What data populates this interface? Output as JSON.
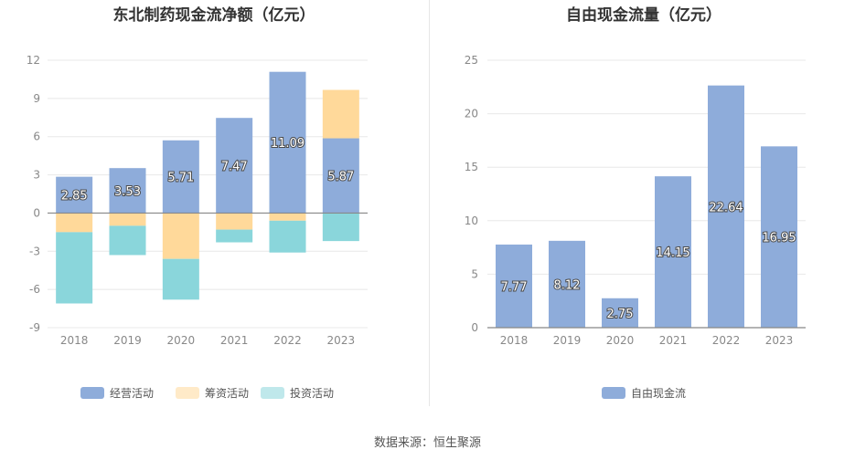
{
  "source": "数据来源：恒生聚源",
  "colors": {
    "operating": "#8EACDA",
    "financing": "#FFD99A",
    "investing": "#8AD6DB",
    "fcf": "#8EACDA",
    "grid": "#e8e8e8",
    "axis": "#888888",
    "tick_text": "#888888",
    "title_text": "#333333",
    "label_text": "#ffffff"
  },
  "chart_data": [
    {
      "type": "bar",
      "stacked": true,
      "title": "东北制药现金流净额（亿元）",
      "categories": [
        "2018",
        "2019",
        "2020",
        "2021",
        "2022",
        "2023"
      ],
      "ylim": [
        -9,
        12
      ],
      "yticks": [
        "12",
        "9",
        "6",
        "3",
        "0",
        "-3",
        "-6",
        "-9"
      ],
      "grid": true,
      "legend_position": "bottom",
      "series": [
        {
          "name": "经营活动",
          "values": [
            2.85,
            3.53,
            5.71,
            7.47,
            11.09,
            5.87
          ],
          "labels": [
            "2.85",
            "3.53",
            "5.71",
            "7.47",
            "11.09",
            "5.87"
          ]
        },
        {
          "name": "筹资活动",
          "values": [
            -1.5,
            -1.0,
            -3.6,
            -1.3,
            -0.6,
            3.8
          ]
        },
        {
          "name": "投资活动",
          "values": [
            -5.6,
            -2.3,
            -3.2,
            -1.0,
            -2.5,
            -2.2
          ]
        }
      ]
    },
    {
      "type": "bar",
      "title": "自由现金流量（亿元）",
      "categories": [
        "2018",
        "2019",
        "2020",
        "2021",
        "2022",
        "2023"
      ],
      "ylim": [
        0,
        25
      ],
      "yticks": [
        "25",
        "20",
        "15",
        "10",
        "5",
        "0"
      ],
      "grid": true,
      "legend_position": "bottom",
      "series": [
        {
          "name": "自由现金流",
          "values": [
            7.77,
            8.12,
            2.75,
            14.15,
            22.64,
            16.95
          ],
          "labels": [
            "7.77",
            "8.12",
            "2.75",
            "14.15",
            "22.64",
            "16.95"
          ]
        }
      ]
    }
  ]
}
